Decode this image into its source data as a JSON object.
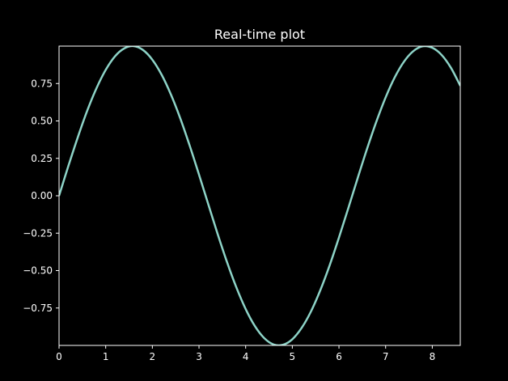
{
  "colors": {
    "background": "#000000",
    "axes": "#ffffff",
    "line": "#8dd3c7"
  },
  "chart_data": {
    "type": "line",
    "title": "Real-time plot",
    "xlabel": "",
    "ylabel": "",
    "xlim": [
      0,
      8.6
    ],
    "ylim": [
      -1.0,
      1.0
    ],
    "grid": false,
    "xticks": [
      0,
      1,
      2,
      3,
      4,
      5,
      6,
      7,
      8
    ],
    "xtick_labels": [
      "0",
      "1",
      "2",
      "3",
      "4",
      "5",
      "6",
      "7",
      "8"
    ],
    "yticks": [
      -0.75,
      -0.5,
      -0.25,
      0.0,
      0.25,
      0.5,
      0.75
    ],
    "ytick_labels": [
      "−0.75",
      "−0.50",
      "−0.25",
      "0.00",
      "0.25",
      "0.50",
      "0.75"
    ],
    "series": [
      {
        "x": [
          0.0,
          0.2,
          0.4,
          0.6,
          0.8,
          1.0,
          1.2,
          1.4,
          1.6,
          1.8,
          2.0,
          2.2,
          2.4,
          2.6,
          2.8,
          3.0,
          3.2,
          3.4,
          3.6,
          3.8,
          4.0,
          4.2,
          4.4,
          4.6,
          4.8,
          5.0,
          5.2,
          5.4,
          5.6,
          5.8,
          6.0,
          6.2,
          6.4,
          6.6,
          6.8,
          7.0,
          7.2,
          7.4,
          7.6,
          7.8,
          8.0,
          8.2,
          8.4,
          8.6
        ],
        "y": [
          0.0,
          0.199,
          0.389,
          0.565,
          0.717,
          0.841,
          0.932,
          0.985,
          1.0,
          0.974,
          0.909,
          0.808,
          0.675,
          0.516,
          0.335,
          0.141,
          -0.058,
          -0.256,
          -0.443,
          -0.612,
          -0.757,
          -0.872,
          -0.952,
          -0.994,
          -0.996,
          -0.959,
          -0.883,
          -0.773,
          -0.631,
          -0.465,
          -0.279,
          -0.083,
          0.117,
          0.312,
          0.494,
          0.657,
          0.794,
          0.899,
          0.968,
          0.999,
          0.989,
          0.941,
          0.855,
          0.735
        ]
      }
    ]
  }
}
